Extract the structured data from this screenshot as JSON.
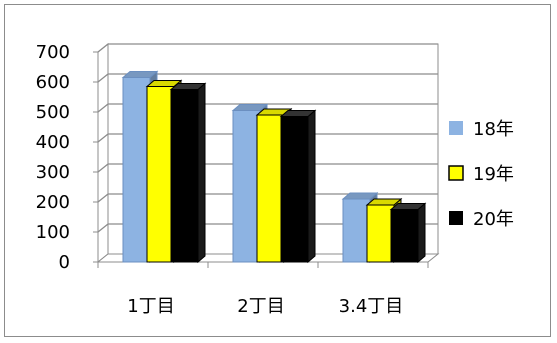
{
  "chart_data": {
    "type": "bar",
    "categories": [
      "1丁目",
      "2丁目",
      "3.4丁目"
    ],
    "series": [
      {
        "name": "18年",
        "values": [
          615,
          505,
          210
        ],
        "color": "#8db3e2"
      },
      {
        "name": "19年",
        "values": [
          585,
          490,
          190
        ],
        "color": "#ffff00"
      },
      {
        "name": "20年",
        "values": [
          575,
          485,
          175
        ],
        "color": "#000000"
      }
    ],
    "ylim": [
      0,
      700
    ],
    "yticks": [
      "0",
      "100",
      "200",
      "300",
      "400",
      "500",
      "600",
      "700"
    ],
    "grid": true,
    "legend_position": "right",
    "style": "3d-clustered-column"
  }
}
